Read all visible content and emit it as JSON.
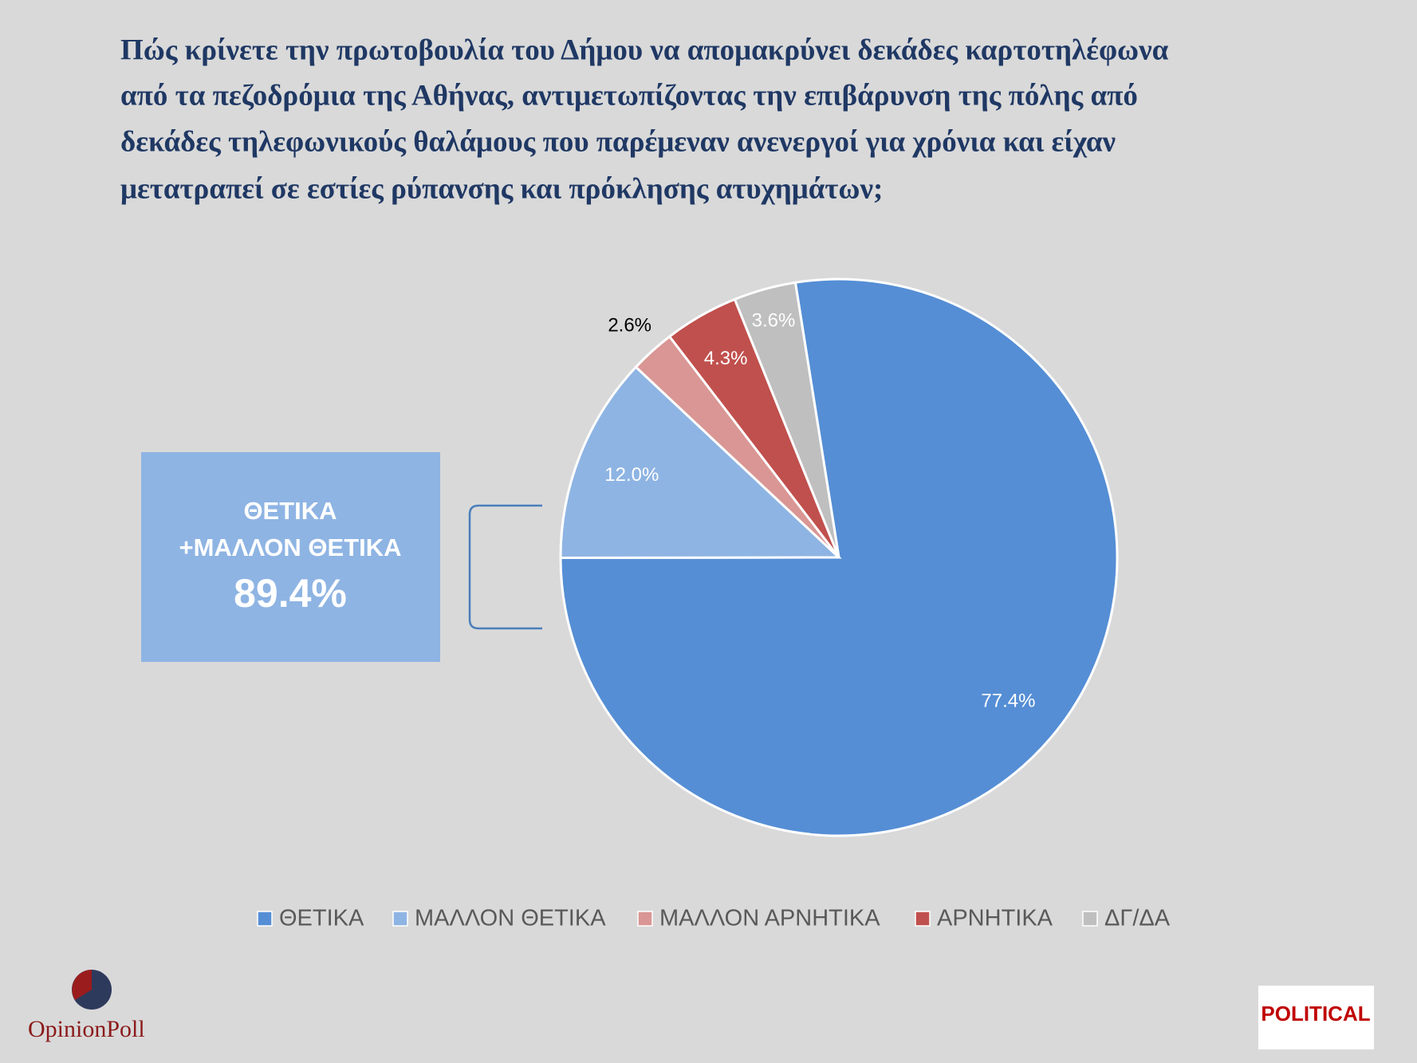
{
  "chart_data": {
    "type": "pie",
    "title_lines": [
      "Πώς κρίνετε την πρωτοβουλία του Δήμου να απομακρύνει δεκάδες καρτοτηλέφωνα",
      "από τα πεζοδρόμια της Αθήνας, αντιμετωπίζοντας την επιβάρυνση της πόλης από",
      "δεκάδες τηλεφωνικούς θαλάμους που παρέμεναν ανενεργοί για χρόνια και είχαν",
      "μετατραπεί σε εστίες ρύπανσης και πρόκλησης ατυχημάτων;"
    ],
    "categories": [
      "ΘΕΤΙΚΑ",
      "ΜΑΛΛΟΝ ΘΕΤΙΚΑ",
      "ΜΑΛΛΟΝ ΑΡΝΗΤΙΚΑ",
      "ΑΡΝΗΤΙΚΑ",
      "ΔΓ/ΔΑ"
    ],
    "values": [
      77.4,
      12.0,
      2.6,
      4.3,
      3.6
    ],
    "value_labels": [
      "77.4%",
      "12.0%",
      "2.6%",
      "4.3%",
      "3.6%"
    ],
    "colors": [
      "#558ed5",
      "#8eb4e3",
      "#d99694",
      "#c0504d",
      "#bfbfbf"
    ],
    "legend": "bottom",
    "annotation": {
      "lines": [
        "ΘΕΤΙΚΑ",
        "+ΜΑΛΛΟΝ ΘΕΤΙΚΑ"
      ],
      "value_label": "89.4%"
    }
  },
  "logos": {
    "left": "OpinionPoll",
    "right": "POLITICAL"
  }
}
